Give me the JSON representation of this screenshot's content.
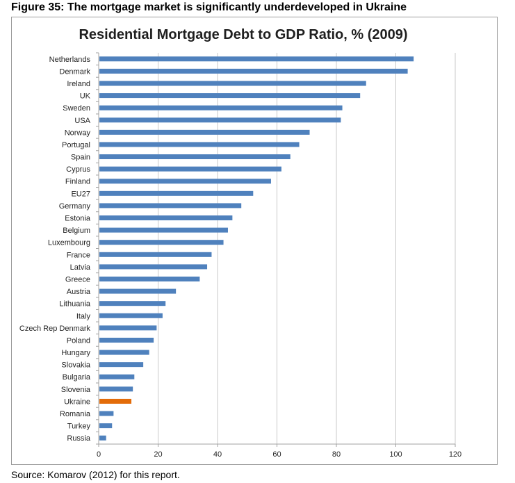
{
  "figure_heading": "Figure 35: The mortgage market is significantly underdeveloped in Ukraine",
  "source_note": "Source: Komarov (2012) for this report.",
  "colors": {
    "bar": "#4f81bd",
    "highlight": "#e36c09",
    "grid": "#c8c8c8",
    "axis": "#a0a0a0"
  },
  "chart_data": {
    "type": "bar",
    "orientation": "horizontal",
    "title": "Residential Mortgage Debt to GDP Ratio, % (2009)",
    "categories": [
      "Netherlands",
      "Denmark",
      "Ireland",
      "UK",
      "Sweden",
      "USA",
      "Norway",
      "Portugal",
      "Spain",
      "Cyprus",
      "Finland",
      "EU27",
      "Germany",
      "Estonia",
      "Belgium",
      "Luxembourg",
      "France",
      "Latvia",
      "Greece",
      "Austria",
      "Lithuania",
      "Italy",
      "Czech Rep Denmark",
      "Poland",
      "Hungary",
      "Slovakia",
      "Bulgaria",
      "Slovenia",
      "Ukraine",
      "Romania",
      "Turkey",
      "Russia"
    ],
    "values": [
      106,
      104,
      90,
      88,
      82,
      81.5,
      71,
      67.5,
      64.5,
      61.5,
      58,
      52,
      48,
      45,
      43.5,
      42,
      38,
      36.5,
      34,
      26,
      22.5,
      21.5,
      19.5,
      18.5,
      17,
      15,
      12,
      11.5,
      11,
      5,
      4.5,
      2.5
    ],
    "highlight": "Ukraine",
    "xlim": [
      0,
      120
    ],
    "xticks": [
      0,
      20,
      40,
      60,
      80,
      100,
      120
    ],
    "grid": true,
    "xlabel": "",
    "ylabel": ""
  }
}
